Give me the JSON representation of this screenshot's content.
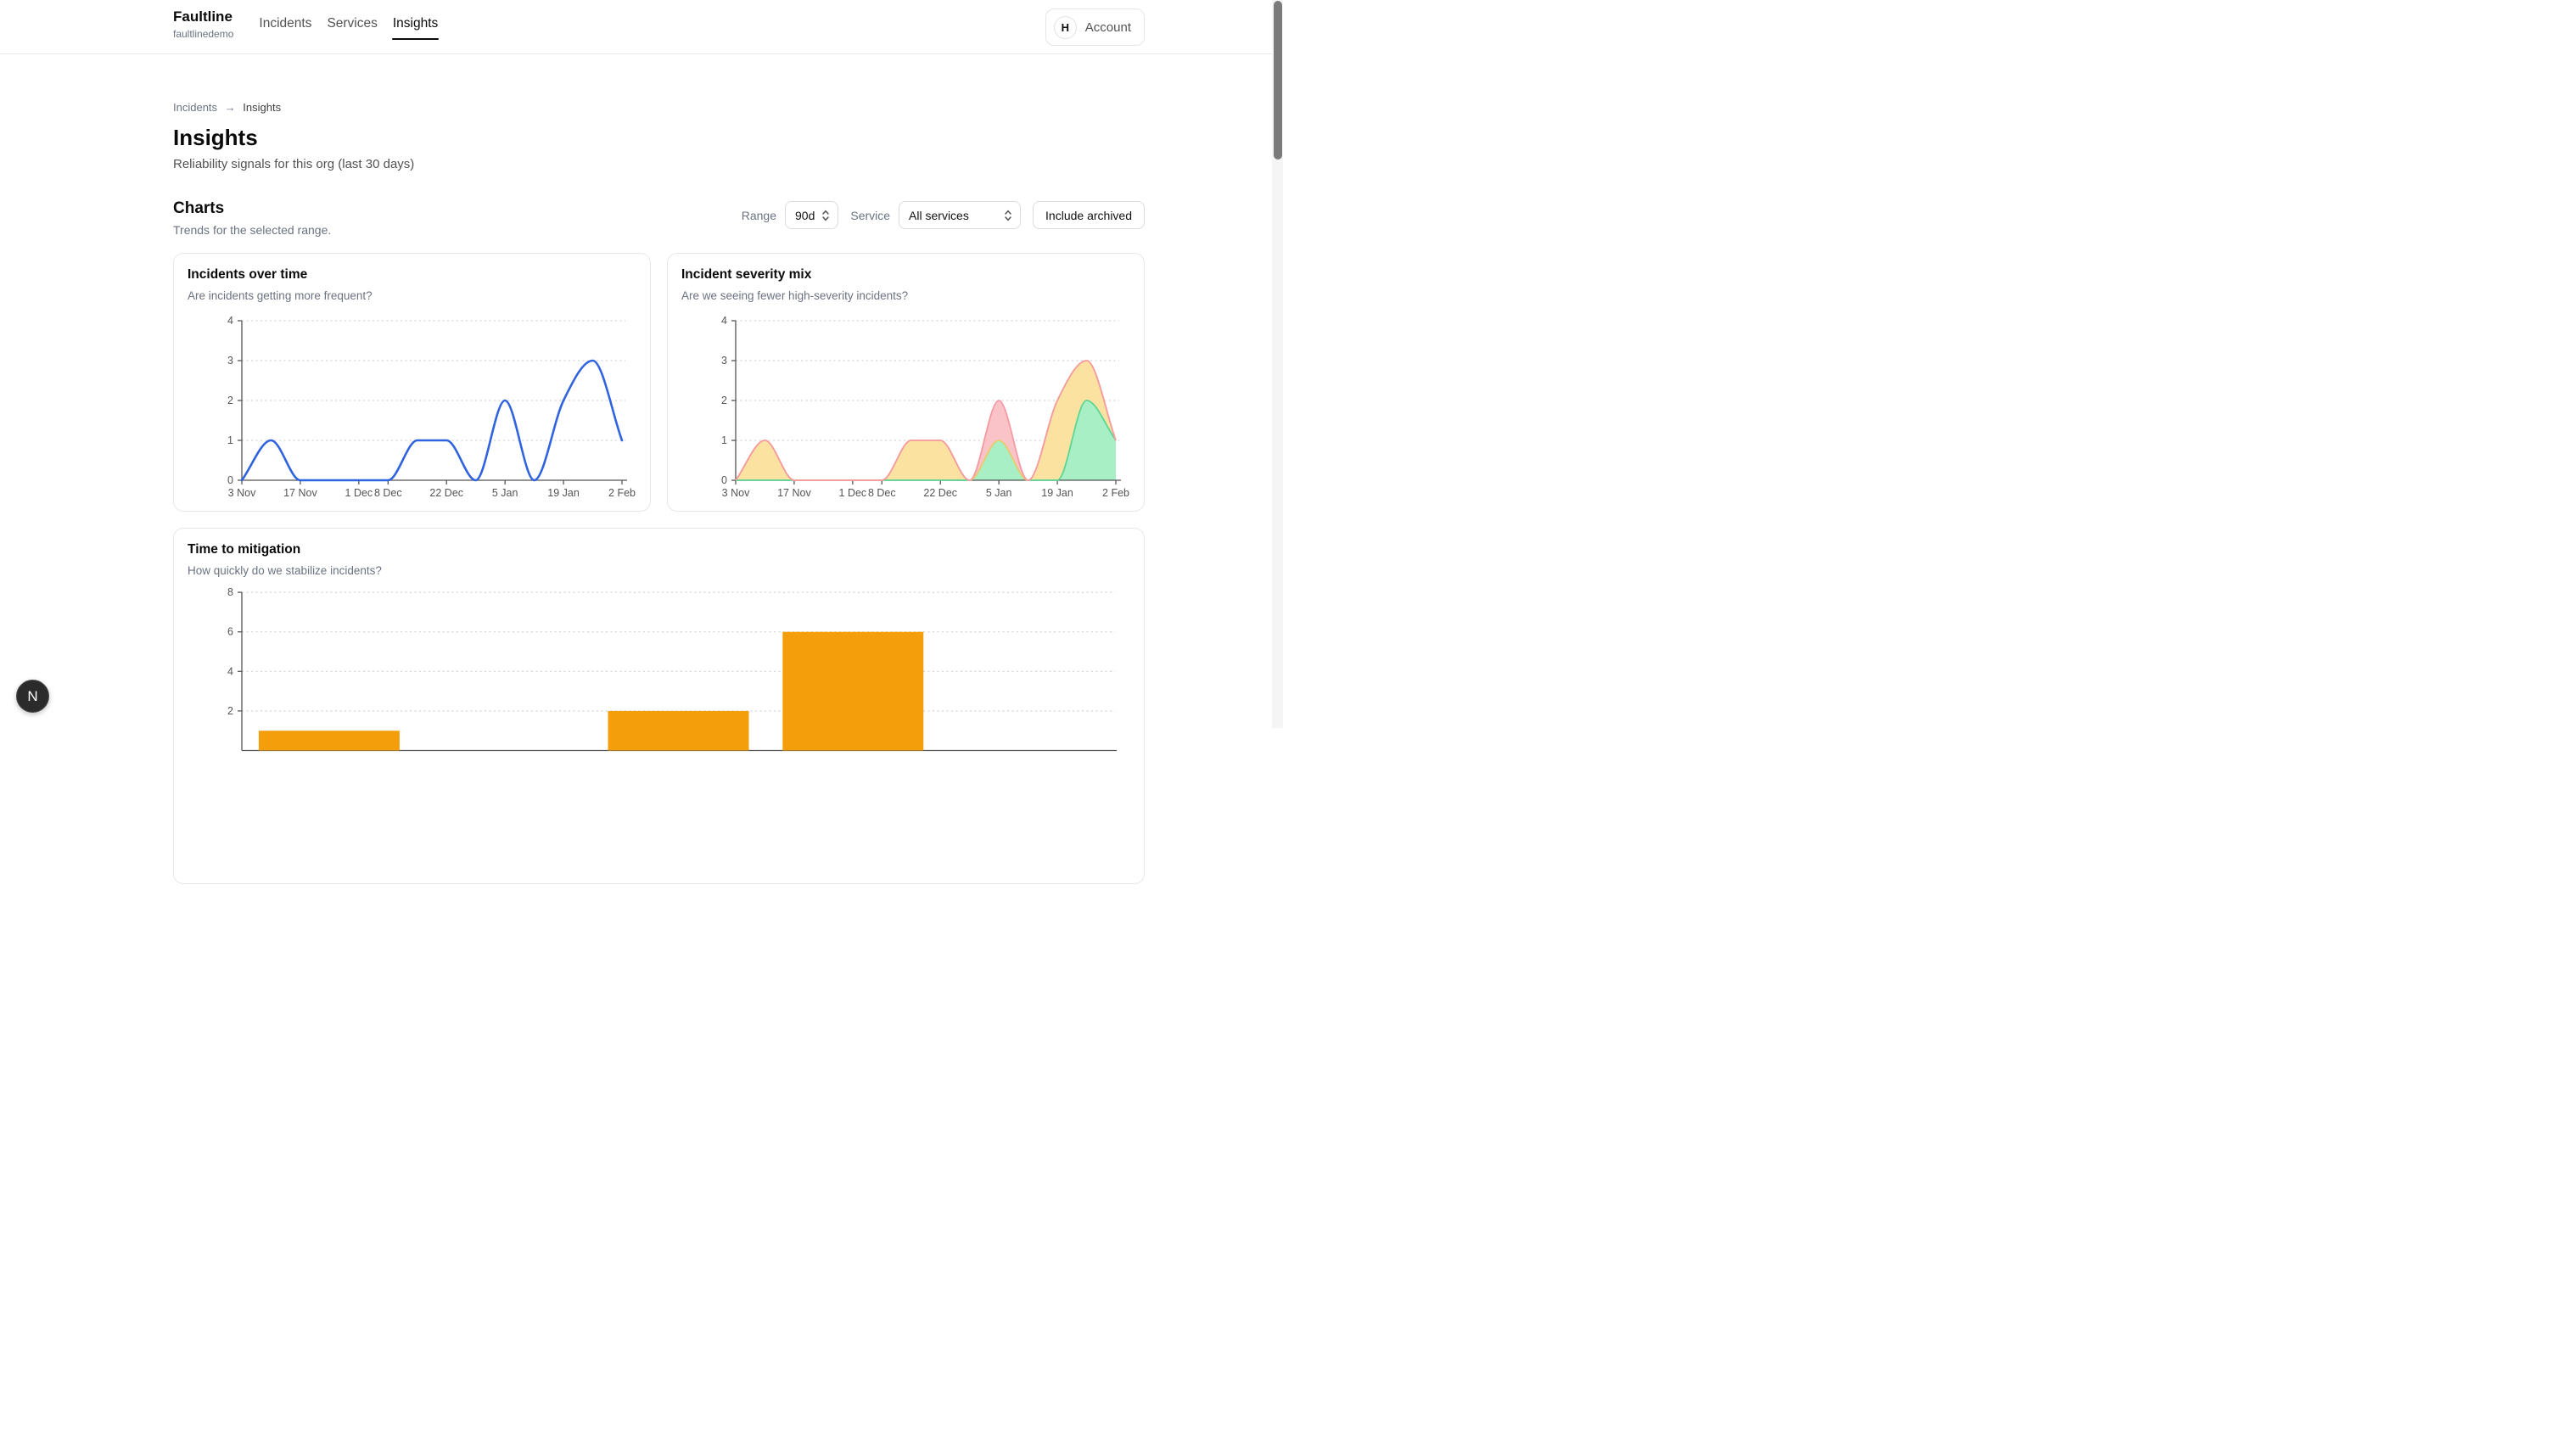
{
  "header": {
    "brand": {
      "name": "Faultline",
      "org": "faultlinedemo"
    },
    "nav": [
      {
        "label": "Incidents",
        "active": false
      },
      {
        "label": "Services",
        "active": false
      },
      {
        "label": "Insights",
        "active": true
      }
    ],
    "account": {
      "avatar_initial": "H",
      "label": "Account"
    }
  },
  "breadcrumb": {
    "parent": "Incidents",
    "separator": "→",
    "current": "Insights"
  },
  "page": {
    "title": "Insights",
    "subtitle": "Reliability signals for this org (last 30 days)"
  },
  "charts_section": {
    "heading": "Charts",
    "subheading": "Trends for the selected range.",
    "controls": {
      "range_label": "Range",
      "range_value": "90d",
      "service_label": "Service",
      "service_value": "All services",
      "archived_button": "Include archived"
    }
  },
  "palette": {
    "axis": "#555555",
    "grid": "#c9c9c9"
  },
  "chart_data": [
    {
      "type": "line",
      "title": "Incidents over time",
      "subtitle": "Are incidents getting more frequent?",
      "x": [
        "3 Nov",
        "10 Nov",
        "17 Nov",
        "24 Nov",
        "1 Dec",
        "8 Dec",
        "15 Dec",
        "22 Dec",
        "29 Dec",
        "5 Jan",
        "12 Jan",
        "19 Jan",
        "26 Jan",
        "2 Feb"
      ],
      "values": [
        0,
        1,
        0,
        0,
        0,
        0,
        1,
        1,
        0,
        2,
        0,
        2,
        3,
        1
      ],
      "x_tick_indices": [
        0,
        2,
        4,
        5,
        7,
        9,
        11,
        13
      ],
      "x_tick_labels": [
        "3 Nov",
        "17 Nov",
        "1 Dec",
        "8 Dec",
        "22 Dec",
        "5 Jan",
        "19 Jan",
        "2 Feb"
      ],
      "y_ticks": [
        0,
        1,
        2,
        3,
        4
      ],
      "ylim": [
        0,
        4
      ],
      "grid": "dashed",
      "line_color": "#2f63e0"
    },
    {
      "type": "stacked-area",
      "title": "Incident severity mix",
      "subtitle": "Are we seeing fewer high-severity incidents?",
      "x": [
        "3 Nov",
        "10 Nov",
        "17 Nov",
        "24 Nov",
        "1 Dec",
        "8 Dec",
        "15 Dec",
        "22 Dec",
        "29 Dec",
        "5 Jan",
        "12 Jan",
        "19 Jan",
        "26 Jan",
        "2 Feb"
      ],
      "series": [
        {
          "name": "green",
          "values": [
            0,
            0,
            0,
            0,
            0,
            0,
            0,
            0,
            0,
            1,
            0,
            0,
            2,
            1
          ],
          "fill": "#a9efc6",
          "stroke": "#5bd694"
        },
        {
          "name": "yellow",
          "values": [
            0,
            1,
            0,
            0,
            0,
            0,
            1,
            1,
            0,
            0,
            0,
            2,
            1,
            0
          ],
          "fill": "#fbe2a0",
          "stroke": "#f2cb6e"
        },
        {
          "name": "red",
          "values": [
            0,
            0,
            0,
            0,
            0,
            0,
            0,
            0,
            0,
            1,
            0,
            0,
            0,
            0
          ],
          "fill": "#f9c3c8",
          "stroke": "#f59aa3"
        }
      ],
      "x_tick_indices": [
        0,
        2,
        4,
        5,
        7,
        9,
        11,
        13
      ],
      "x_tick_labels": [
        "3 Nov",
        "17 Nov",
        "1 Dec",
        "8 Dec",
        "22 Dec",
        "5 Jan",
        "19 Jan",
        "2 Feb"
      ],
      "y_ticks": [
        0,
        1,
        2,
        3,
        4
      ],
      "ylim": [
        0,
        4
      ],
      "grid": "dashed"
    },
    {
      "type": "bar",
      "title": "Time to mitigation",
      "subtitle": "How quickly do we stabilize incidents?",
      "categories": [
        "",
        "",
        "",
        "",
        ""
      ],
      "values": [
        1,
        0,
        2,
        6,
        0
      ],
      "y_ticks": [
        2,
        4,
        6,
        8
      ],
      "ylim": [
        0,
        8
      ],
      "grid": "dashed",
      "bar_color": "#f49e0b"
    }
  ],
  "floating_button": {
    "label": "N"
  }
}
